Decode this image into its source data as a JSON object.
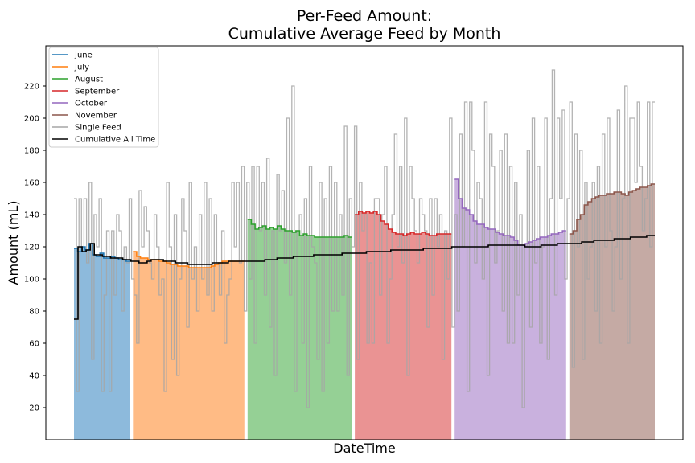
{
  "chart_data": {
    "type": "area",
    "title_lines": [
      "Per-Feed Amount:",
      "Cumulative Average Feed by Month"
    ],
    "xlabel": "DateTime",
    "ylabel": "Amount (mL)",
    "ylim": [
      0,
      245
    ],
    "yticks": [
      20,
      40,
      60,
      80,
      100,
      120,
      140,
      160,
      180,
      200,
      220
    ],
    "legend_position": "upper-left",
    "months": [
      {
        "name": "June",
        "color": "#1f77b4",
        "fill": "#8dbadc",
        "monthly_cumulative_average": [
          119,
          117,
          120,
          118,
          122,
          115,
          114,
          116,
          113,
          113,
          114,
          113,
          112,
          112,
          111
        ]
      },
      {
        "name": "July",
        "color": "#ff7f0e",
        "fill": "#ffbb85",
        "monthly_cumulative_average": [
          117,
          114,
          113,
          113,
          112,
          112,
          112,
          111,
          111,
          110,
          109,
          109,
          108,
          108,
          108,
          107,
          107,
          107,
          107,
          107,
          107,
          108,
          109,
          110,
          111,
          111,
          111,
          111,
          111,
          111
        ]
      },
      {
        "name": "August",
        "color": "#2ca02c",
        "fill": "#95d095",
        "monthly_cumulative_average": [
          137,
          134,
          131,
          132,
          133,
          131,
          132,
          131,
          133,
          131,
          130,
          130,
          129,
          130,
          127,
          128,
          127,
          127,
          126,
          126,
          126,
          126,
          126,
          126,
          126,
          126,
          127,
          126
        ]
      },
      {
        "name": "September",
        "color": "#d62728",
        "fill": "#ea9393",
        "monthly_cumulative_average": [
          140,
          142,
          141,
          142,
          141,
          142,
          140,
          136,
          134,
          131,
          129,
          128,
          128,
          127,
          128,
          129,
          128,
          128,
          129,
          128,
          127,
          127,
          128,
          128,
          128,
          128
        ]
      },
      {
        "name": "October",
        "color": "#9467bd",
        "fill": "#c9b1de",
        "monthly_cumulative_average": [
          162,
          150,
          144,
          143,
          140,
          136,
          134,
          134,
          132,
          131,
          131,
          129,
          128,
          127,
          127,
          126,
          124,
          121,
          121,
          122,
          123,
          124,
          125,
          126,
          126,
          127,
          128,
          128,
          129,
          130
        ]
      },
      {
        "name": "November",
        "color": "#8c564b",
        "fill": "#c5aaa4",
        "monthly_cumulative_average": [
          128,
          130,
          137,
          140,
          146,
          148,
          150,
          151,
          152,
          152,
          153,
          153,
          154,
          154,
          153,
          152,
          154,
          155,
          156,
          157,
          157,
          158,
          159
        ]
      }
    ],
    "single_feed": {
      "name": "Single Feed",
      "color": "#a6a6a6",
      "values": [
        150,
        30,
        150,
        120,
        150,
        110,
        160,
        50,
        140,
        120,
        150,
        30,
        90,
        130,
        30,
        130,
        90,
        140,
        130,
        80,
        120,
        110,
        150,
        100,
        90,
        60,
        155,
        120,
        145,
        130,
        110,
        100,
        140,
        120,
        90,
        100,
        30,
        160,
        120,
        50,
        140,
        40,
        100,
        150,
        130,
        70,
        160,
        100,
        120,
        80,
        140,
        100,
        160,
        90,
        150,
        80,
        140,
        110,
        90,
        130,
        60,
        90,
        100,
        160,
        120,
        160,
        110,
        170,
        80,
        160,
        100,
        170,
        60,
        170,
        130,
        160,
        90,
        175,
        70,
        130,
        40,
        165,
        130,
        155,
        110,
        200,
        90,
        220,
        30,
        130,
        140,
        60,
        150,
        20,
        170,
        120,
        110,
        50,
        160,
        30,
        150,
        60,
        170,
        80,
        160,
        80,
        140,
        90,
        195,
        40,
        150,
        120,
        195,
        50,
        160,
        130,
        140,
        60,
        110,
        60,
        150,
        150,
        90,
        140,
        170,
        60,
        100,
        140,
        190,
        120,
        170,
        110,
        200,
        40,
        170,
        150,
        130,
        110,
        150,
        140,
        130,
        70,
        150,
        90,
        150,
        120,
        140,
        50,
        130,
        100,
        200,
        70,
        140,
        80,
        190,
        120,
        210,
        30,
        210,
        180,
        110,
        160,
        150,
        100,
        210,
        40,
        190,
        170,
        110,
        130,
        180,
        80,
        190,
        60,
        170,
        60,
        160,
        90,
        140,
        20,
        120,
        180,
        70,
        200,
        110,
        170,
        60,
        120,
        200,
        50,
        150,
        230,
        90,
        200,
        150,
        205,
        100,
        150,
        210,
        45,
        190,
        120,
        180,
        50,
        160,
        100,
        120,
        160,
        80,
        170,
        60,
        190,
        120,
        200,
        130,
        80,
        120,
        205,
        100,
        150,
        220,
        60,
        200,
        200,
        160,
        210,
        170,
        130,
        150,
        210,
        120,
        210
      ]
    },
    "cumulative_all_time": {
      "name": "Cumulative All Time",
      "color": "#000000",
      "values": [
        75,
        120,
        117,
        118,
        122,
        115,
        115,
        114,
        114,
        113,
        113,
        113,
        112,
        112,
        111,
        111,
        110,
        110,
        111,
        112,
        112,
        112,
        111,
        111,
        111,
        110,
        110,
        110,
        109,
        109,
        109,
        109,
        109,
        109,
        110,
        110,
        110,
        110,
        111,
        111,
        111,
        111,
        111,
        111,
        111,
        111,
        111,
        112,
        112,
        112,
        113,
        113,
        113,
        113,
        114,
        114,
        114,
        114,
        114,
        115,
        115,
        115,
        115,
        115,
        115,
        115,
        116,
        116,
        116,
        116,
        116,
        116,
        117,
        117,
        117,
        117,
        117,
        117,
        118,
        118,
        118,
        118,
        118,
        118,
        118,
        118,
        119,
        119,
        119,
        119,
        119,
        119,
        119,
        120,
        120,
        120,
        120,
        120,
        120,
        120,
        120,
        120,
        121,
        121,
        121,
        121,
        121,
        121,
        121,
        121,
        121,
        120,
        120,
        120,
        120,
        121,
        121,
        121,
        121,
        122,
        122,
        122,
        122,
        122,
        122,
        123,
        123,
        123,
        124,
        124,
        124,
        124,
        124,
        125,
        125,
        125,
        125,
        126,
        126,
        126,
        126,
        127,
        127
      ]
    }
  }
}
